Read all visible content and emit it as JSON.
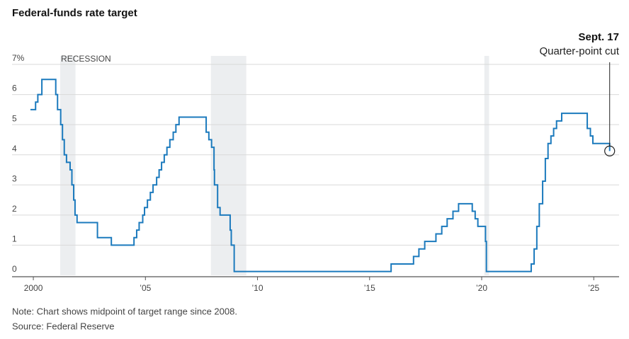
{
  "chart_data": {
    "type": "line",
    "step": true,
    "title": "Federal-funds rate target",
    "note": "Note: Chart shows midpoint of target range since 2008.",
    "source": "Source: Federal Reserve",
    "recession_label": "RECESSION",
    "recessions": [
      [
        2001.2,
        2001.88
      ],
      [
        2007.92,
        2009.5
      ],
      [
        2020.12,
        2020.33
      ]
    ],
    "recession_color": "#eceef0",
    "annotations": [
      {
        "title": "Sept. 17",
        "text": "Quarter-point cut",
        "x": 2025.71,
        "y": 4.125
      }
    ],
    "grid": true,
    "xlim": [
      1999.05,
      2026.13
    ],
    "xticks": [
      2000,
      {
        "value": 2005,
        "label": "’05"
      },
      {
        "value": 2010,
        "label": "’10"
      },
      {
        "value": 2015,
        "label": "’15"
      },
      {
        "value": 2020,
        "label": "’20"
      },
      {
        "value": 2025,
        "label": "’25"
      }
    ],
    "ylim": [
      0,
      7
    ],
    "yticks": [
      0,
      1,
      2,
      3,
      4,
      5,
      6,
      {
        "value": 7,
        "label": "7%"
      }
    ],
    "series": [
      {
        "color": "#1b7abd",
        "x": [
          1999.87,
          2000.1,
          2000.2,
          2000.38,
          2001.0,
          2001.08,
          2001.22,
          2001.3,
          2001.38,
          2001.48,
          2001.64,
          2001.72,
          2001.8,
          2001.86,
          2001.95,
          2002.86,
          2003.48,
          2004.49,
          2004.61,
          2004.72,
          2004.88,
          2004.96,
          2005.09,
          2005.22,
          2005.34,
          2005.5,
          2005.61,
          2005.72,
          2005.84,
          2005.96,
          2006.09,
          2006.24,
          2006.36,
          2006.5,
          2007.71,
          2007.83,
          2007.95,
          2008.06,
          2008.08,
          2008.22,
          2008.33,
          2008.78,
          2008.83,
          2008.96,
          2015.96,
          2016.96,
          2017.2,
          2017.46,
          2017.96,
          2018.22,
          2018.46,
          2018.72,
          2018.97,
          2019.58,
          2019.71,
          2019.83,
          2020.17,
          2020.21,
          2022.21,
          2022.34,
          2022.46,
          2022.57,
          2022.72,
          2022.84,
          2022.96,
          2023.09,
          2023.21,
          2023.34,
          2023.57,
          2024.71,
          2024.85,
          2024.96,
          2025.71
        ],
        "values": [
          5.5,
          5.75,
          6.0,
          6.5,
          6.0,
          5.5,
          5.0,
          4.5,
          4.0,
          3.75,
          3.5,
          3.0,
          2.5,
          2.0,
          1.75,
          1.25,
          1.0,
          1.25,
          1.5,
          1.75,
          2.0,
          2.25,
          2.5,
          2.75,
          3.0,
          3.25,
          3.5,
          3.75,
          4.0,
          4.25,
          4.5,
          4.75,
          5.0,
          5.25,
          4.75,
          4.5,
          4.25,
          3.5,
          3.0,
          2.25,
          2.0,
          1.5,
          1.0,
          0.125,
          0.375,
          0.625,
          0.875,
          1.125,
          1.375,
          1.625,
          1.875,
          2.125,
          2.375,
          2.125,
          1.875,
          1.625,
          1.125,
          0.125,
          0.375,
          0.875,
          1.625,
          2.375,
          3.125,
          3.875,
          4.375,
          4.625,
          4.875,
          5.125,
          5.375,
          4.875,
          4.625,
          4.375,
          4.125
        ]
      }
    ]
  }
}
